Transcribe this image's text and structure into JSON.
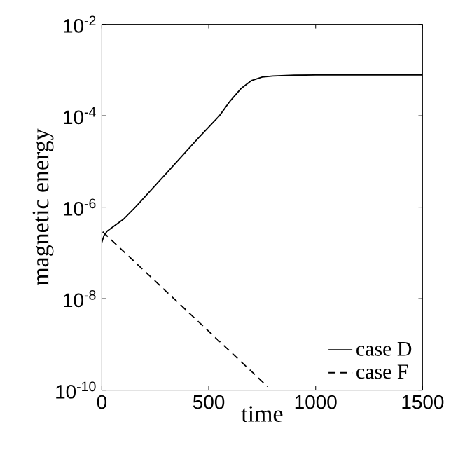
{
  "chart_data": {
    "type": "line",
    "xlabel": "time",
    "ylabel": "magnetic energy",
    "log": "y",
    "legend": "bottom right",
    "marker": "none",
    "xlim": [
      0,
      1500
    ],
    "xticks": [
      0,
      500,
      1000,
      1500
    ],
    "ylim": [
      1e-10,
      0.01
    ],
    "yticks": [
      {
        "value": 1e-10,
        "label": "10$^{-10}$"
      },
      {
        "value": 1e-08,
        "label": "10$^{-8}$"
      },
      {
        "value": 1e-06,
        "label": "10$^{-6}$"
      },
      {
        "value": 0.0001,
        "label": "10$^{-4}$"
      },
      {
        "value": 0.01,
        "label": "10$^{-2}$"
      }
    ],
    "series": [
      {
        "name": "case D",
        "color": "#000000",
        "line_style": "solid",
        "x": [
          0,
          10,
          25,
          100,
          157,
          300,
          450,
          550,
          600,
          650,
          700,
          750,
          800,
          900,
          1000,
          1500
        ],
        "values": [
          1.7e-07,
          2.4e-07,
          3e-07,
          5.4e-07,
          1e-06,
          5.4e-06,
          3.2e-05,
          0.0001,
          0.00021,
          0.00039,
          0.00059,
          0.0007,
          0.00074,
          0.00077,
          0.00078,
          0.00078
        ]
      },
      {
        "name": "case F",
        "color": "#000000",
        "line_style": "dashed",
        "x": [
          4,
          775
        ],
        "values": [
          2.9e-07,
          1.2e-10
        ]
      }
    ]
  }
}
